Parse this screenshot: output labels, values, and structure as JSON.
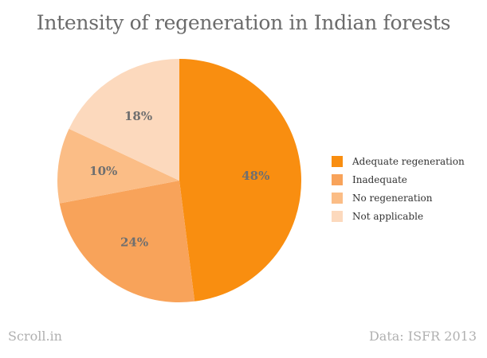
{
  "chart_data": {
    "type": "pie",
    "title": "Intensity of regeneration in Indian forests",
    "categories": [
      "Adequate regeneration",
      "Inadequate",
      "No regeneration",
      "Not applicable"
    ],
    "values": [
      48,
      24,
      10,
      18
    ],
    "labels": [
      "48%",
      "24%",
      "10%",
      "18%"
    ],
    "colors": [
      "#f98e10",
      "#f8a35a",
      "#fbbd86",
      "#fcd9bd"
    ],
    "legend_position": "right"
  },
  "footer": {
    "source_brand": "Scroll.in",
    "data_credit": "Data: ISFR 2013"
  }
}
